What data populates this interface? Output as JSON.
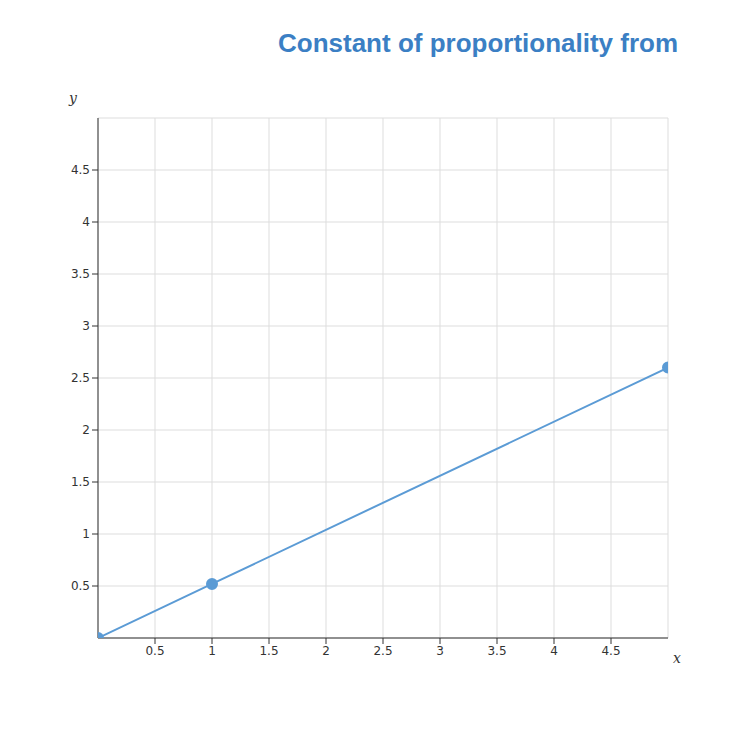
{
  "chart_data": {
    "type": "line",
    "title": "Constant of proportionality from",
    "x_label": "x",
    "y_label": "y",
    "x": [
      0,
      1,
      5
    ],
    "values": [
      0,
      0.52,
      2.6
    ],
    "color": "#5b9bd5",
    "marker": "circle",
    "xlim": [
      0,
      5
    ],
    "ylim": [
      0,
      5
    ],
    "xticks": [
      0.5,
      1,
      1.5,
      2,
      2.5,
      3,
      3.5,
      4,
      4.5
    ],
    "yticks": [
      0.5,
      1,
      1.5,
      2,
      2.5,
      3,
      3.5,
      4,
      4.5
    ],
    "grid": true
  }
}
